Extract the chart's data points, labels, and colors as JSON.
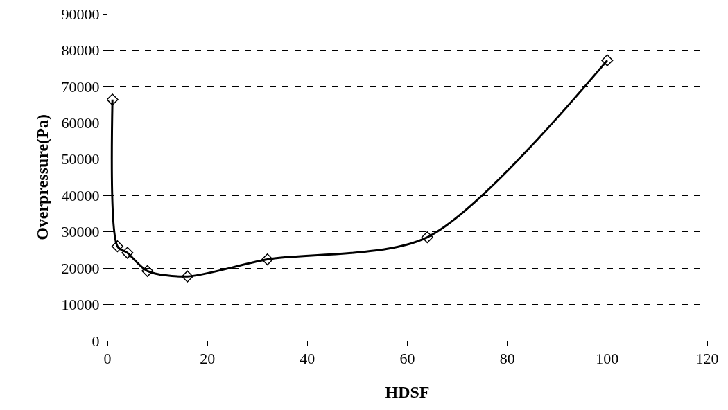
{
  "chart_data": {
    "type": "line",
    "xlabel": "HDSF",
    "ylabel": "Overpressure(Pa)",
    "x": [
      1,
      2,
      4,
      8,
      16,
      32,
      64,
      100
    ],
    "series": [
      {
        "color": "#000000",
        "values": [
          66400,
          26000,
          24200,
          19200,
          17700,
          22400,
          28500,
          77200
        ]
      }
    ],
    "xlim": [
      0,
      120
    ],
    "xticks": [
      0,
      20,
      40,
      60,
      80,
      100,
      120
    ],
    "ylim": [
      0,
      90000
    ],
    "yticks": [
      0,
      10000,
      20000,
      30000,
      40000,
      50000,
      60000,
      70000,
      80000,
      90000
    ],
    "grid": "y",
    "marker": "diamond",
    "line_style": "solid"
  }
}
